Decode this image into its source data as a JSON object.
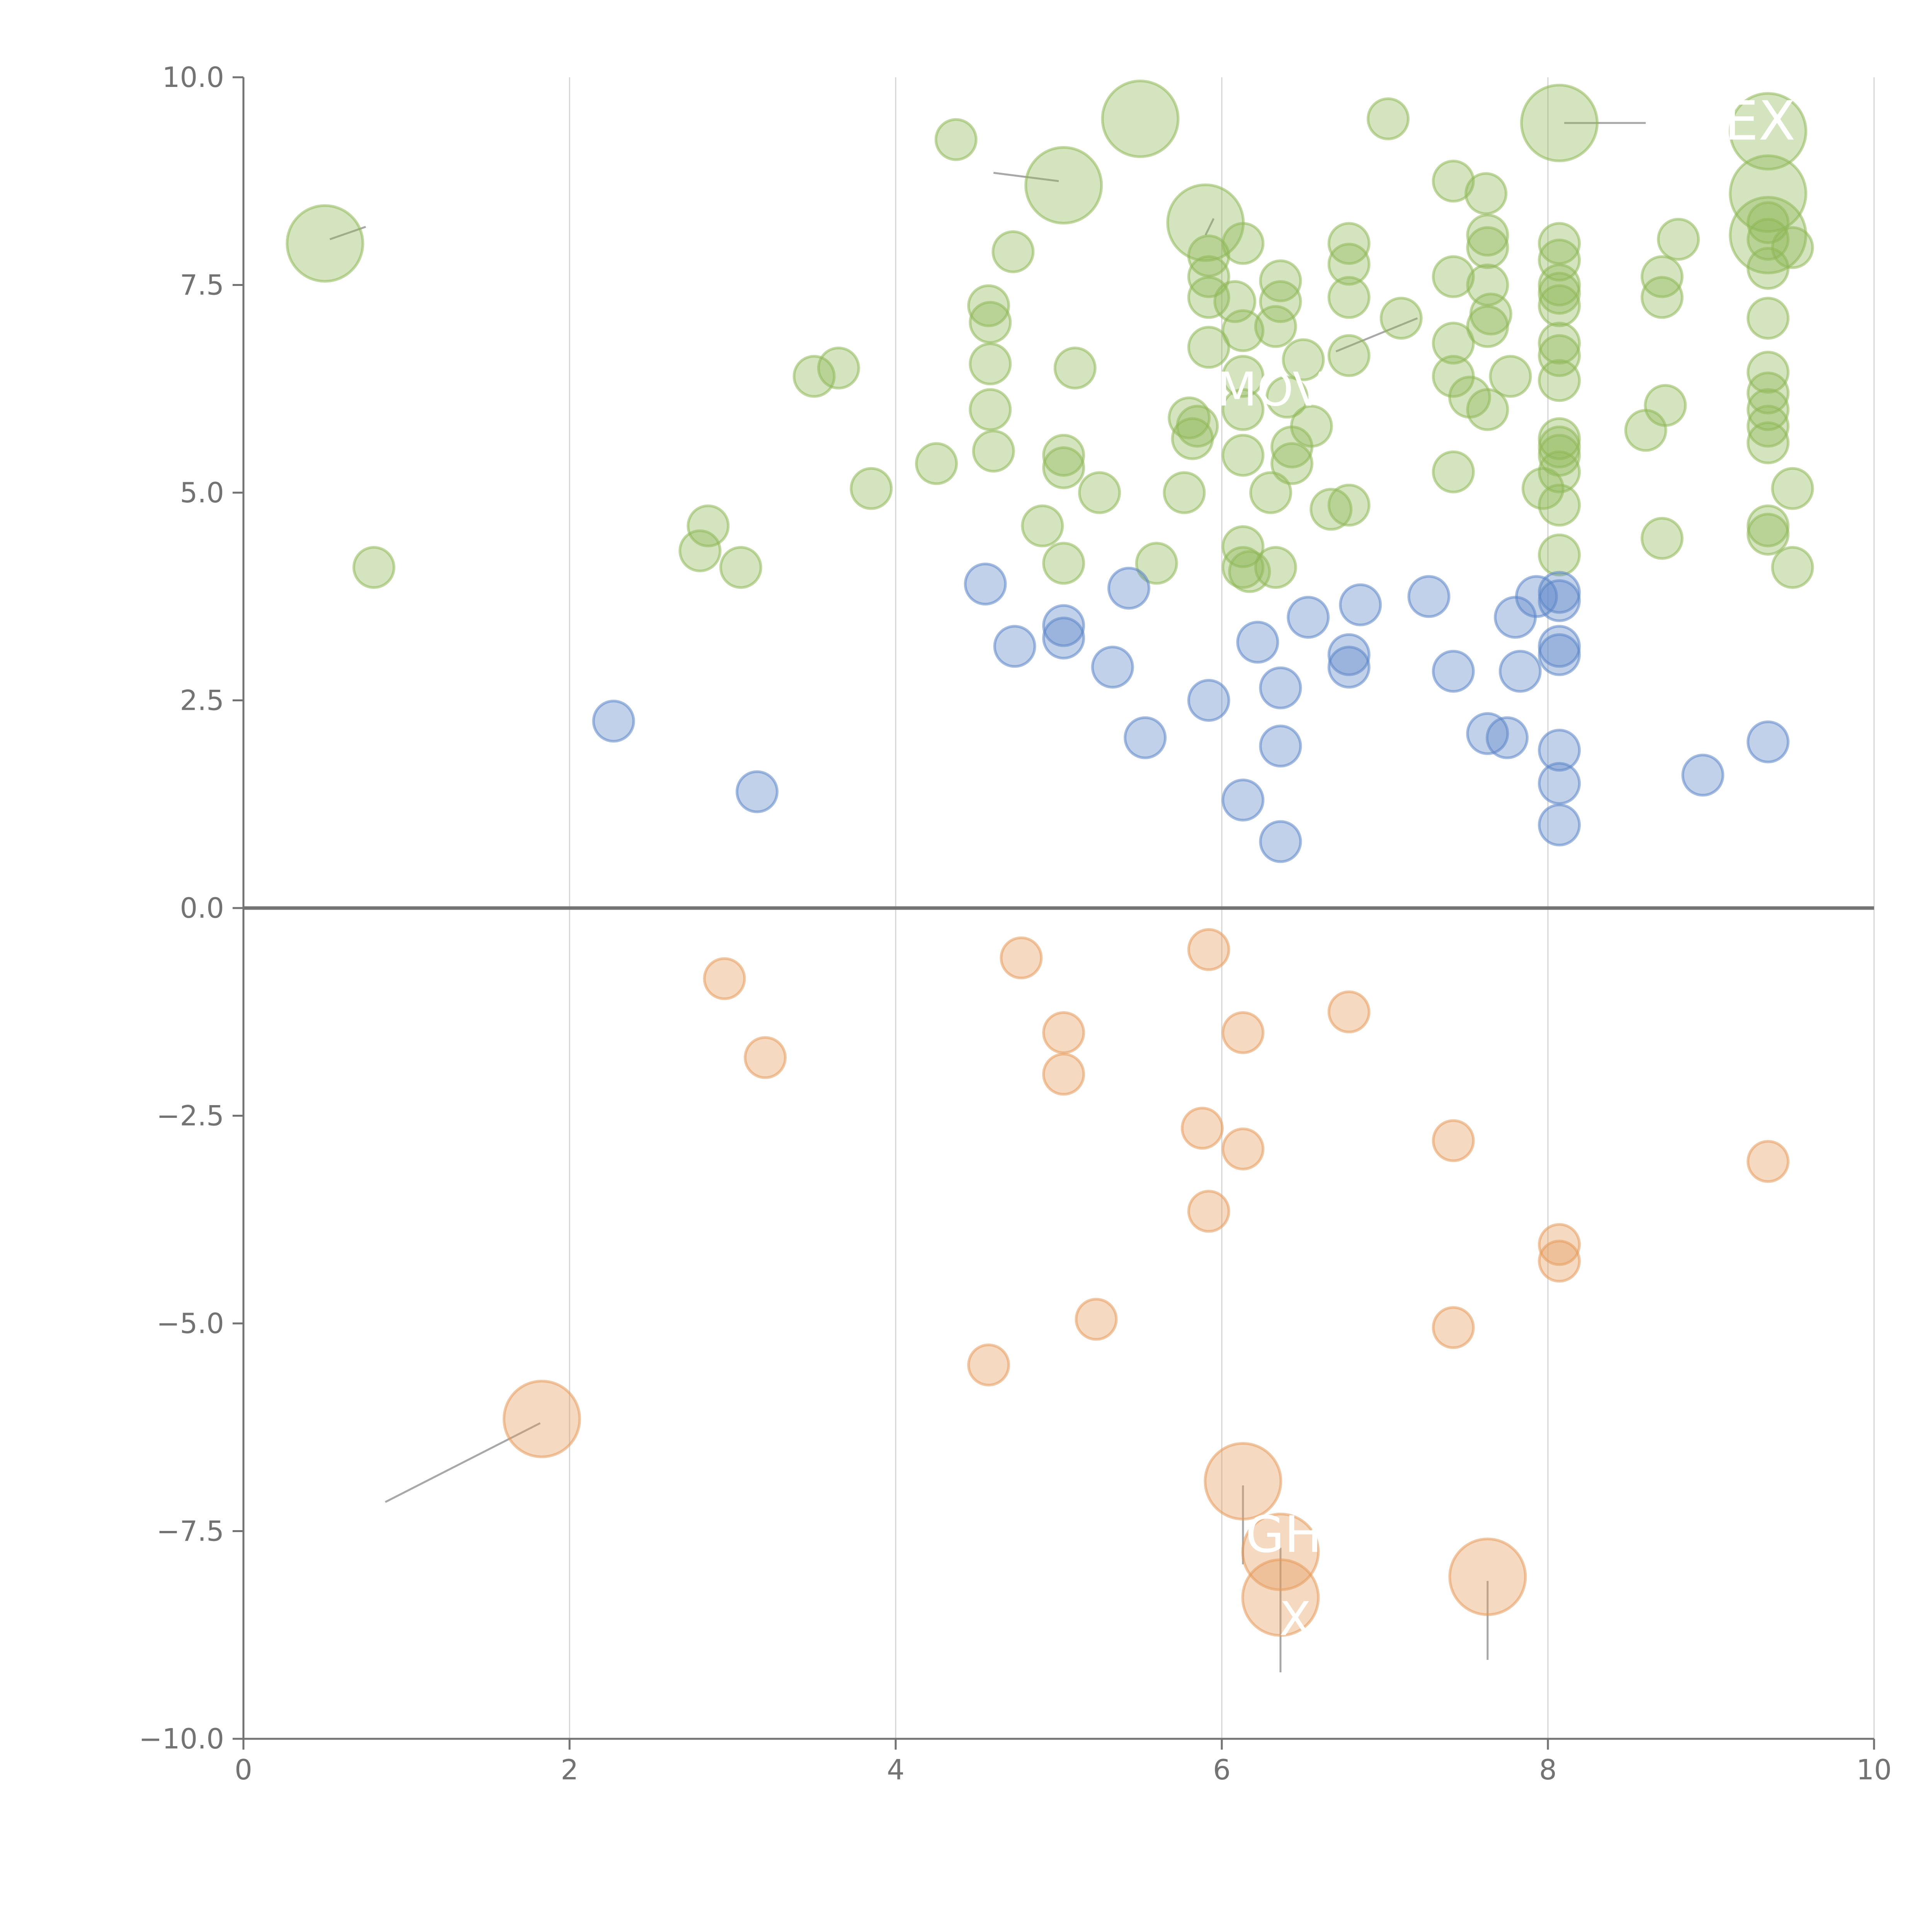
{
  "chart_data": {
    "type": "scatter",
    "title": "",
    "xlabel": "",
    "ylabel": "",
    "xlim": [
      0,
      10
    ],
    "ylim": [
      -10,
      10
    ],
    "x_ticks": [
      {
        "value": 0,
        "label": "0"
      },
      {
        "value": 2,
        "label": "2"
      },
      {
        "value": 4,
        "label": "4"
      },
      {
        "value": 6,
        "label": "6"
      },
      {
        "value": 8,
        "label": "8"
      },
      {
        "value": 10,
        "label": "10"
      }
    ],
    "y_ticks": [
      {
        "value": 10,
        "label": "10.0"
      },
      {
        "value": 7.5,
        "label": "7.5"
      },
      {
        "value": 5,
        "label": "5.0"
      },
      {
        "value": 2.5,
        "label": "2.5"
      },
      {
        "value": 0,
        "label": "0.0"
      },
      {
        "value": -2.5,
        "label": "−2.5"
      },
      {
        "value": -5,
        "label": "−5.0"
      },
      {
        "value": -7.5,
        "label": "−7.5"
      },
      {
        "value": -10,
        "label": "−10.0"
      }
    ],
    "grid": "vertical",
    "zero_line": true,
    "colors": {
      "green": "#8fb858",
      "blue": "#5b85c7",
      "orange": "#e69a5b",
      "axis": "#737373",
      "grid": "#d4d4d4",
      "label": "#ffffff",
      "leader": "#a8a8a8"
    },
    "series": [
      {
        "name": "green",
        "color": "#8fb858",
        "points": [
          [
            0.5,
            8.0,
            3
          ],
          [
            0.8,
            4.1,
            1
          ],
          [
            2.8,
            4.3,
            1
          ],
          [
            2.85,
            4.6,
            1
          ],
          [
            3.05,
            4.1,
            1
          ],
          [
            3.5,
            6.4,
            1
          ],
          [
            3.65,
            6.5,
            1
          ],
          [
            3.85,
            5.05,
            1
          ],
          [
            4.25,
            5.35,
            1
          ],
          [
            4.37,
            9.25,
            1
          ],
          [
            4.57,
            7.25,
            1
          ],
          [
            4.58,
            7.05,
            1
          ],
          [
            4.58,
            6.55,
            1
          ],
          [
            4.58,
            6.0,
            1
          ],
          [
            4.6,
            5.5,
            1
          ],
          [
            4.72,
            7.9,
            1
          ],
          [
            4.9,
            4.6,
            1
          ],
          [
            5.03,
            5.45,
            1
          ],
          [
            5.03,
            5.3,
            1
          ],
          [
            5.03,
            4.15,
            1
          ],
          [
            5.03,
            8.7,
            3
          ],
          [
            5.1,
            6.5,
            1
          ],
          [
            5.25,
            5.0,
            1
          ],
          [
            5.5,
            9.5,
            3
          ],
          [
            5.6,
            4.15,
            1
          ],
          [
            5.77,
            5.0,
            1
          ],
          [
            5.8,
            5.9,
            1
          ],
          [
            5.82,
            5.65,
            1
          ],
          [
            5.85,
            5.8,
            1
          ],
          [
            5.9,
            8.25,
            3
          ],
          [
            5.92,
            7.85,
            1
          ],
          [
            5.92,
            7.6,
            1
          ],
          [
            5.92,
            7.35,
            1
          ],
          [
            5.92,
            6.75,
            1
          ],
          [
            6.08,
            7.3,
            1
          ],
          [
            6.13,
            8.0,
            1
          ],
          [
            6.13,
            6.95,
            1
          ],
          [
            6.13,
            6.4,
            1
          ],
          [
            6.13,
            6.0,
            1
          ],
          [
            6.13,
            5.45,
            1
          ],
          [
            6.13,
            4.35,
            1
          ],
          [
            6.13,
            4.1,
            1
          ],
          [
            6.17,
            4.05,
            1
          ],
          [
            6.3,
            5.0,
            1
          ],
          [
            6.33,
            4.1,
            1
          ],
          [
            6.36,
            7.55,
            1
          ],
          [
            6.36,
            7.3,
            1
          ],
          [
            6.33,
            7.0,
            1
          ],
          [
            6.4,
            6.15,
            1
          ],
          [
            6.43,
            5.55,
            1
          ],
          [
            6.43,
            5.35,
            1
          ],
          [
            6.5,
            6.6,
            1
          ],
          [
            6.55,
            5.8,
            1
          ],
          [
            6.67,
            4.8,
            1
          ],
          [
            6.78,
            8.0,
            1
          ],
          [
            6.78,
            7.75,
            1
          ],
          [
            6.78,
            7.35,
            1
          ],
          [
            6.78,
            6.65,
            1
          ],
          [
            6.78,
            4.85,
            1
          ],
          [
            7.02,
            9.5,
            1
          ],
          [
            7.1,
            7.1,
            1
          ],
          [
            7.42,
            8.75,
            1
          ],
          [
            7.42,
            7.6,
            1
          ],
          [
            7.42,
            6.8,
            1
          ],
          [
            7.42,
            6.4,
            1
          ],
          [
            7.42,
            5.25,
            1
          ],
          [
            7.52,
            6.15,
            1
          ],
          [
            7.62,
            8.6,
            1
          ],
          [
            7.63,
            8.1,
            1
          ],
          [
            7.63,
            7.95,
            1
          ],
          [
            7.63,
            7.5,
            1
          ],
          [
            7.65,
            7.15,
            1
          ],
          [
            7.63,
            7.0,
            1
          ],
          [
            7.63,
            6.0,
            1
          ],
          [
            7.77,
            6.4,
            1
          ],
          [
            7.97,
            5.05,
            1
          ],
          [
            8.07,
            9.45,
            3
          ],
          [
            8.07,
            8.0,
            1
          ],
          [
            8.07,
            7.8,
            1
          ],
          [
            8.07,
            7.5,
            1
          ],
          [
            8.07,
            7.4,
            1
          ],
          [
            8.07,
            7.25,
            1
          ],
          [
            8.07,
            6.8,
            1
          ],
          [
            8.07,
            6.65,
            1
          ],
          [
            8.07,
            6.35,
            1
          ],
          [
            8.07,
            5.65,
            1
          ],
          [
            8.07,
            5.55,
            1
          ],
          [
            8.07,
            5.45,
            1
          ],
          [
            8.07,
            5.25,
            1
          ],
          [
            8.07,
            4.85,
            1
          ],
          [
            8.07,
            4.25,
            1
          ],
          [
            8.8,
            8.05,
            1
          ],
          [
            8.6,
            5.75,
            1
          ],
          [
            8.7,
            7.6,
            1
          ],
          [
            8.7,
            7.35,
            1
          ],
          [
            8.72,
            6.05,
            1
          ],
          [
            8.7,
            4.45,
            1
          ],
          [
            9.35,
            9.35,
            3
          ],
          [
            9.35,
            8.6,
            3
          ],
          [
            9.35,
            8.1,
            3
          ],
          [
            9.35,
            8.25,
            1
          ],
          [
            9.35,
            8.05,
            1
          ],
          [
            9.35,
            7.7,
            1
          ],
          [
            9.35,
            7.1,
            1
          ],
          [
            9.35,
            6.45,
            1
          ],
          [
            9.35,
            6.2,
            1
          ],
          [
            9.35,
            6.0,
            1
          ],
          [
            9.35,
            5.8,
            1
          ],
          [
            9.35,
            5.6,
            1
          ],
          [
            9.35,
            4.6,
            1
          ],
          [
            9.35,
            4.5,
            1
          ],
          [
            9.5,
            7.95,
            1
          ],
          [
            9.5,
            5.05,
            1
          ],
          [
            9.5,
            4.1,
            1
          ]
        ]
      },
      {
        "name": "blue",
        "color": "#5b85c7",
        "points": [
          [
            2.27,
            2.25,
            1
          ],
          [
            3.15,
            1.4,
            1
          ],
          [
            4.55,
            3.9,
            1
          ],
          [
            4.73,
            3.15,
            1
          ],
          [
            5.03,
            3.4,
            1
          ],
          [
            5.03,
            3.25,
            1
          ],
          [
            5.33,
            2.9,
            1
          ],
          [
            5.43,
            3.85,
            1
          ],
          [
            5.53,
            2.05,
            1
          ],
          [
            5.92,
            2.5,
            1
          ],
          [
            6.13,
            1.3,
            1
          ],
          [
            6.22,
            3.2,
            1
          ],
          [
            6.36,
            2.65,
            1
          ],
          [
            6.36,
            1.95,
            1
          ],
          [
            6.36,
            0.8,
            1
          ],
          [
            6.53,
            3.5,
            1
          ],
          [
            6.78,
            3.05,
            1
          ],
          [
            6.78,
            2.9,
            1
          ],
          [
            6.85,
            3.65,
            1
          ],
          [
            7.27,
            3.75,
            1
          ],
          [
            7.42,
            2.85,
            1
          ],
          [
            7.63,
            2.1,
            1
          ],
          [
            7.75,
            2.05,
            1
          ],
          [
            7.8,
            3.5,
            1
          ],
          [
            7.83,
            2.85,
            1
          ],
          [
            7.93,
            3.75,
            1
          ],
          [
            8.07,
            3.8,
            1
          ],
          [
            8.07,
            3.7,
            1
          ],
          [
            8.07,
            3.15,
            1
          ],
          [
            8.07,
            3.05,
            1
          ],
          [
            8.07,
            1.9,
            1
          ],
          [
            8.07,
            1.5,
            1
          ],
          [
            8.07,
            1.0,
            1
          ],
          [
            8.95,
            1.6,
            1
          ],
          [
            9.35,
            2.0,
            1
          ]
        ]
      },
      {
        "name": "orange",
        "color": "#e69a5b",
        "points": [
          [
            1.83,
            -6.15,
            3
          ],
          [
            2.95,
            -0.85,
            1
          ],
          [
            3.2,
            -1.8,
            1
          ],
          [
            4.77,
            -0.6,
            1
          ],
          [
            5.03,
            -1.5,
            1
          ],
          [
            5.03,
            -2.0,
            1
          ],
          [
            5.23,
            -4.95,
            1
          ],
          [
            4.57,
            -5.5,
            1
          ],
          [
            5.92,
            -0.5,
            1
          ],
          [
            5.88,
            -2.65,
            1
          ],
          [
            5.92,
            -3.65,
            1
          ],
          [
            6.13,
            -1.5,
            1
          ],
          [
            6.13,
            -2.9,
            1
          ],
          [
            6.13,
            -6.9,
            3
          ],
          [
            6.36,
            -7.75,
            3
          ],
          [
            6.36,
            -8.3,
            3
          ],
          [
            6.78,
            -1.25,
            1
          ],
          [
            7.42,
            -2.8,
            1
          ],
          [
            7.42,
            -5.05,
            1
          ],
          [
            7.63,
            -8.05,
            3
          ],
          [
            8.07,
            -4.05,
            1
          ],
          [
            8.07,
            -4.25,
            1
          ],
          [
            9.35,
            -3.05,
            1
          ]
        ]
      }
    ],
    "labels": [
      "MOV",
      "GH",
      "X",
      "EX"
    ]
  }
}
